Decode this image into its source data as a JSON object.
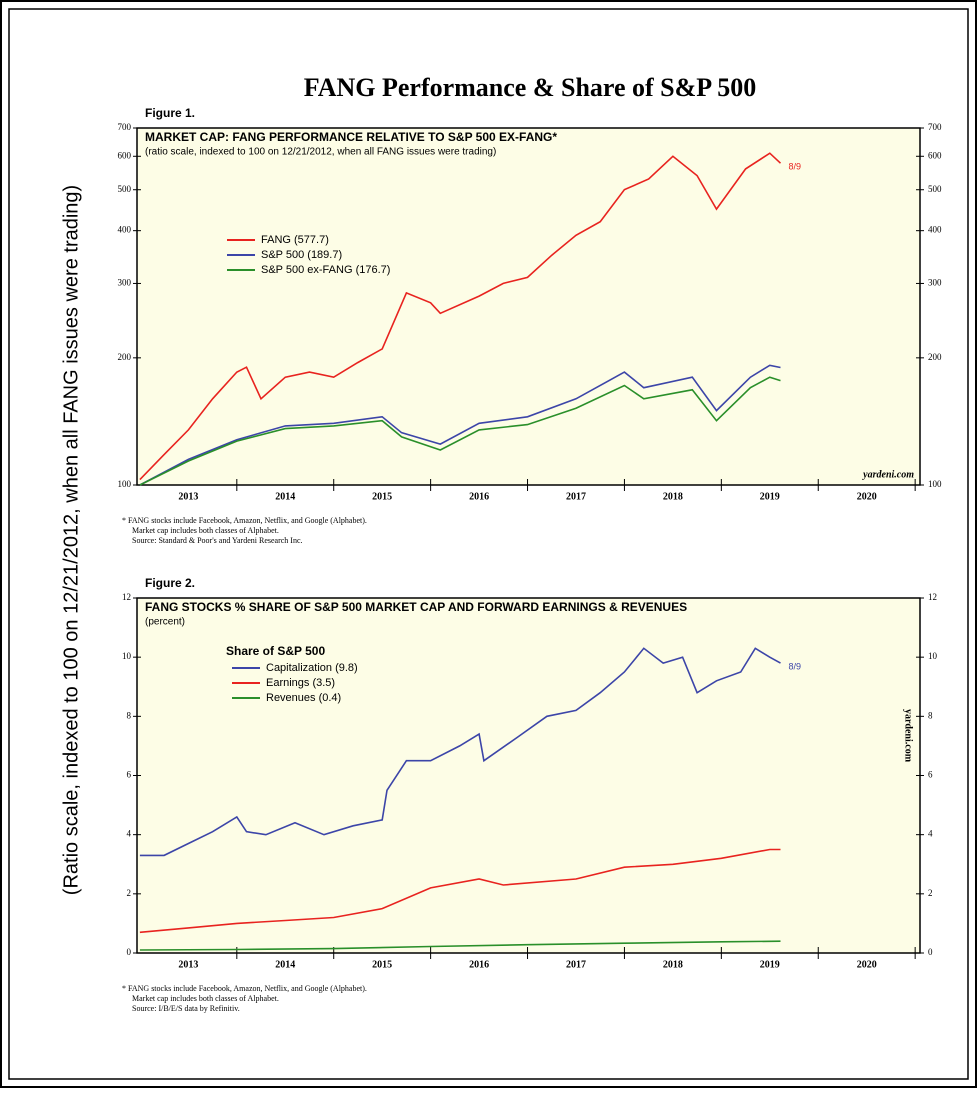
{
  "title": "FANG Performance & Share of S&P 500",
  "side_label": "(Ratio scale, indexed to 100 on 12/21/2012, when all FANG issues were trading)",
  "chart_data": [
    {
      "type": "line",
      "figure": "Figure 1.",
      "title": "MARKET CAP: FANG PERFORMANCE RELATIVE TO S&P 500 EX-FANG*",
      "subtitle": "(ratio scale, indexed to 100 on 12/21/2012, when all FANG issues were trading)",
      "log_scale": true,
      "legend": "upper left",
      "annotation": "8/9",
      "watermark": "yardeni.com",
      "xlim": [
        2012.97,
        2021.05
      ],
      "xticks": [
        {
          "value": 2013.5,
          "label": "2013"
        },
        {
          "value": 2014.5,
          "label": "2014"
        },
        {
          "value": 2015.5,
          "label": "2015"
        },
        {
          "value": 2016.5,
          "label": "2016"
        },
        {
          "value": 2017.5,
          "label": "2017"
        },
        {
          "value": 2018.5,
          "label": "2018"
        },
        {
          "value": 2019.5,
          "label": "2019"
        },
        {
          "value": 2020.5,
          "label": "2020"
        }
      ],
      "ylim": [
        100,
        700
      ],
      "yticks": [
        100,
        200,
        300,
        400,
        500,
        600,
        700
      ],
      "series": [
        {
          "name": "FANG (577.7)",
          "color": "#e8231f",
          "x": [
            2013.0,
            2013.25,
            2013.5,
            2013.75,
            2014.0,
            2014.1,
            2014.25,
            2014.5,
            2014.75,
            2015.0,
            2015.25,
            2015.5,
            2015.75,
            2016.0,
            2016.1,
            2016.5,
            2016.75,
            2017.0,
            2017.25,
            2017.5,
            2017.75,
            2018.0,
            2018.25,
            2018.5,
            2018.75,
            2018.95,
            2019.25,
            2019.5,
            2019.61
          ],
          "values": [
            103,
            118,
            135,
            160,
            185,
            190,
            160,
            180,
            185,
            180,
            195,
            210,
            285,
            270,
            255,
            280,
            300,
            310,
            350,
            390,
            420,
            500,
            530,
            600,
            540,
            450,
            560,
            610,
            577.7
          ]
        },
        {
          "name": "S&P 500 (189.7)",
          "color": "#3c45a8",
          "x": [
            2013.0,
            2013.5,
            2014.0,
            2014.5,
            2015.0,
            2015.5,
            2015.7,
            2016.1,
            2016.5,
            2017.0,
            2017.5,
            2018.0,
            2018.2,
            2018.7,
            2018.95,
            2019.3,
            2019.5,
            2019.61
          ],
          "values": [
            100,
            115,
            128,
            138,
            140,
            145,
            133,
            125,
            140,
            145,
            160,
            185,
            170,
            180,
            150,
            180,
            192,
            189.7
          ]
        },
        {
          "name": "S&P 500 ex-FANG (176.7)",
          "color": "#2a8f2a",
          "x": [
            2013.0,
            2013.5,
            2014.0,
            2014.5,
            2015.0,
            2015.5,
            2015.7,
            2016.1,
            2016.5,
            2017.0,
            2017.5,
            2018.0,
            2018.2,
            2018.7,
            2018.95,
            2019.3,
            2019.5,
            2019.61
          ],
          "values": [
            100,
            114,
            127,
            136,
            138,
            142,
            130,
            121,
            135,
            139,
            152,
            172,
            160,
            168,
            142,
            170,
            180,
            176.7
          ]
        }
      ],
      "footnotes": [
        "*  FANG stocks include Facebook, Amazon, Netflix, and Google (Alphabet).",
        "Market cap includes both classes of Alphabet.",
        "Source: Standard & Poor's and Yardeni Research Inc."
      ]
    },
    {
      "type": "line",
      "figure": "Figure 2.",
      "title": "FANG STOCKS % SHARE OF S&P 500 MARKET CAP AND FORWARD EARNINGS & REVENUES",
      "subtitle": "(percent)",
      "log_scale": false,
      "legend": "upper left",
      "legend_title": "Share of S&P 500",
      "annotation": "8/9",
      "watermark": "yardeni.com",
      "xlim": [
        2012.97,
        2021.05
      ],
      "xticks": [
        {
          "value": 2013.5,
          "label": "2013"
        },
        {
          "value": 2014.5,
          "label": "2014"
        },
        {
          "value": 2015.5,
          "label": "2015"
        },
        {
          "value": 2016.5,
          "label": "2016"
        },
        {
          "value": 2017.5,
          "label": "2017"
        },
        {
          "value": 2018.5,
          "label": "2018"
        },
        {
          "value": 2019.5,
          "label": "2019"
        },
        {
          "value": 2020.5,
          "label": "2020"
        }
      ],
      "ylim": [
        0,
        12
      ],
      "yticks": [
        0,
        2,
        4,
        6,
        8,
        10,
        12
      ],
      "series": [
        {
          "name": "Capitalization (9.8)",
          "color": "#3c45a8",
          "x": [
            2013.0,
            2013.25,
            2013.5,
            2013.75,
            2014.0,
            2014.1,
            2014.3,
            2014.6,
            2014.9,
            2015.2,
            2015.5,
            2015.55,
            2015.75,
            2016.0,
            2016.3,
            2016.5,
            2016.55,
            2016.9,
            2017.2,
            2017.5,
            2017.75,
            2018.0,
            2018.2,
            2018.4,
            2018.6,
            2018.75,
            2018.95,
            2019.2,
            2019.35,
            2019.5,
            2019.61
          ],
          "values": [
            3.3,
            3.3,
            3.7,
            4.1,
            4.6,
            4.1,
            4.0,
            4.4,
            4.0,
            4.3,
            4.5,
            5.5,
            6.5,
            6.5,
            7.0,
            7.4,
            6.5,
            7.3,
            8.0,
            8.2,
            8.8,
            9.5,
            10.3,
            9.8,
            10.0,
            8.8,
            9.2,
            9.5,
            10.3,
            10.0,
            9.8
          ]
        },
        {
          "name": "Earnings (3.5)",
          "color": "#e8231f",
          "x": [
            2013.0,
            2013.5,
            2014.0,
            2014.5,
            2015.0,
            2015.5,
            2016.0,
            2016.5,
            2016.75,
            2017.5,
            2018.0,
            2018.5,
            2019.0,
            2019.5,
            2019.61
          ],
          "values": [
            0.7,
            0.85,
            1.0,
            1.1,
            1.2,
            1.5,
            2.2,
            2.5,
            2.3,
            2.5,
            2.9,
            3.0,
            3.2,
            3.5,
            3.5
          ]
        },
        {
          "name": "Revenues (0.4)",
          "color": "#2a8f2a",
          "x": [
            2013.0,
            2014.0,
            2015.0,
            2016.0,
            2017.0,
            2018.0,
            2019.0,
            2019.61
          ],
          "values": [
            0.1,
            0.12,
            0.15,
            0.22,
            0.28,
            0.33,
            0.38,
            0.4
          ]
        }
      ],
      "footnotes": [
        "*  FANG stocks include Facebook, Amazon, Netflix, and Google (Alphabet).",
        "Market cap includes both classes of Alphabet.",
        "Source: I/B/E/S data by Refinitiv."
      ]
    }
  ]
}
